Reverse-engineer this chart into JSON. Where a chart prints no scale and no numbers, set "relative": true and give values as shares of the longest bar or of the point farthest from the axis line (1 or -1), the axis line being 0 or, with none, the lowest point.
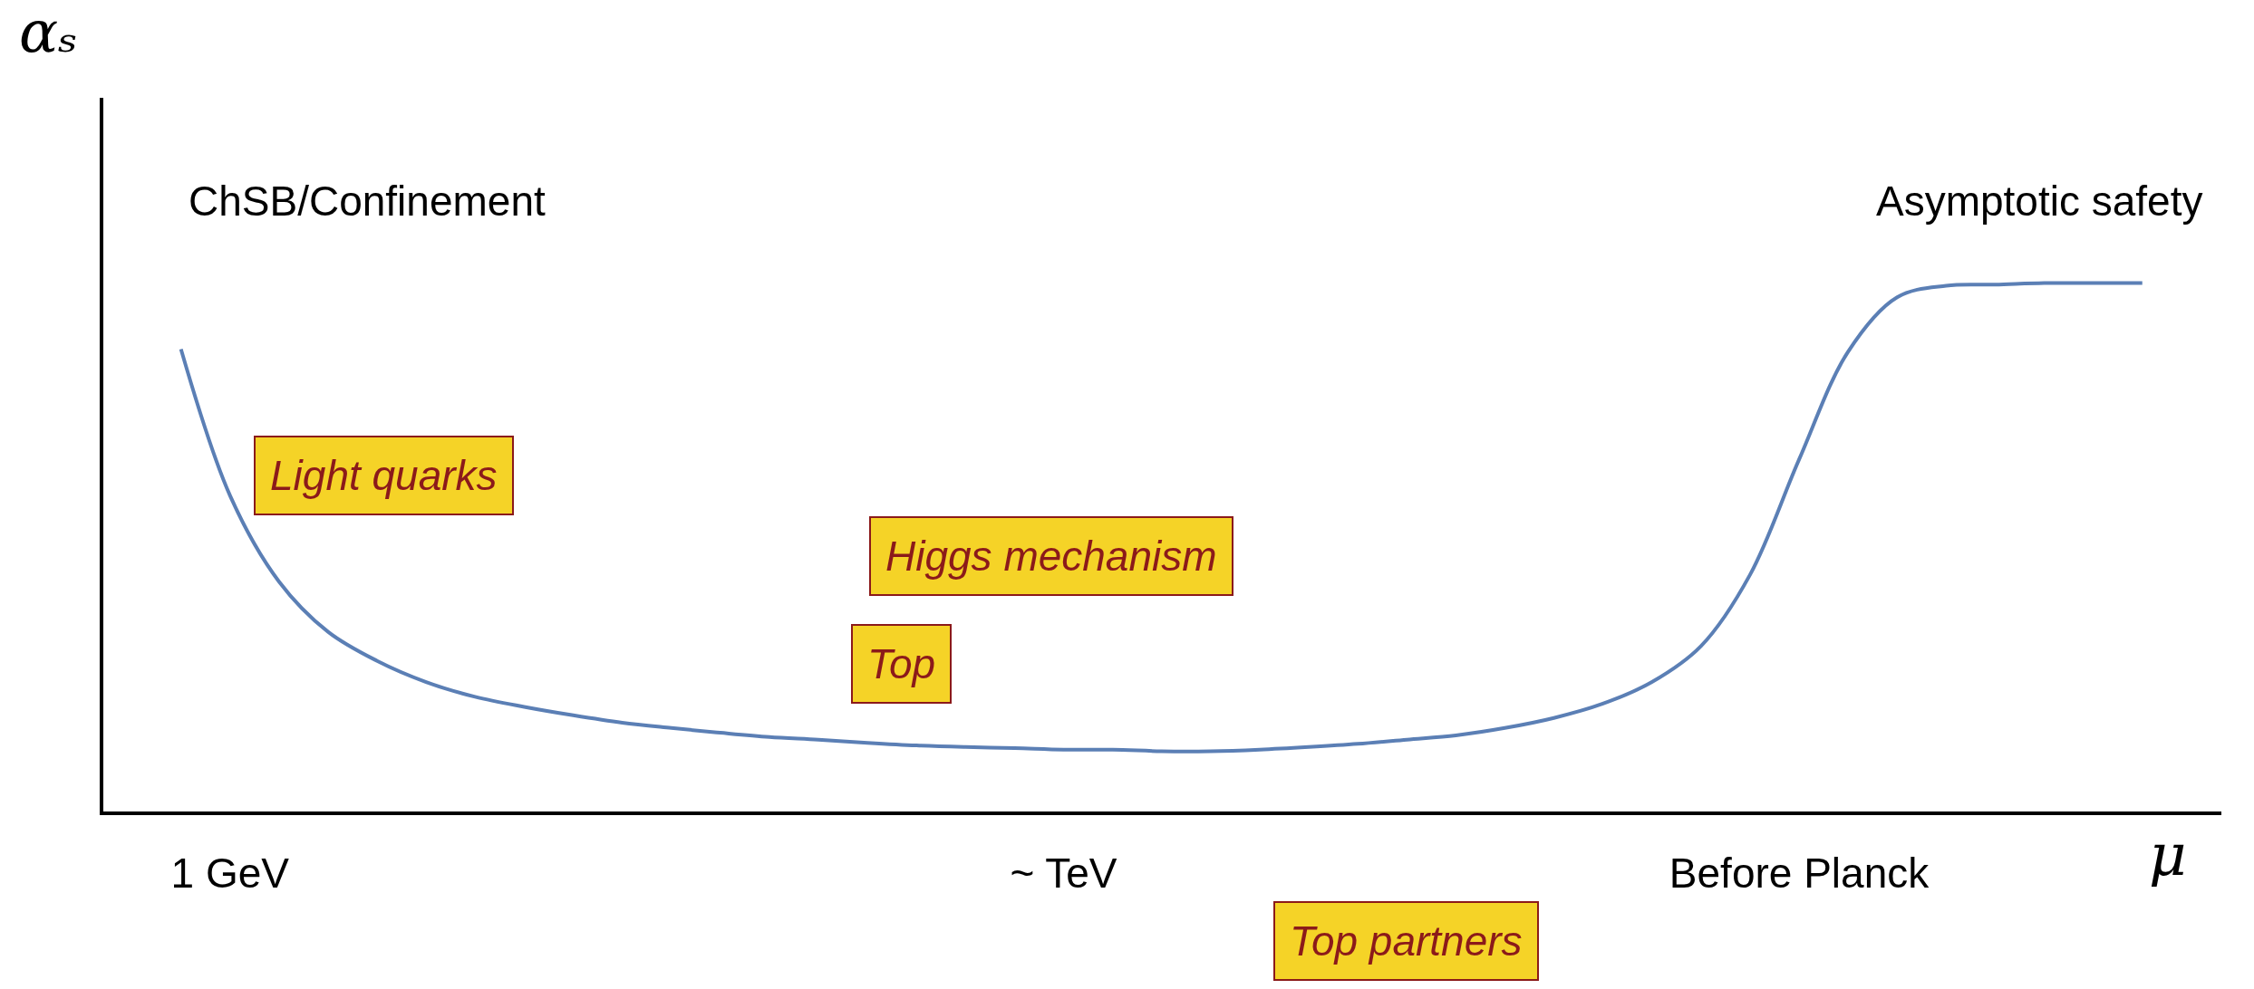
{
  "chart_data": {
    "type": "line",
    "relative": true,
    "xlabel": "μ",
    "ylabel": "αₛ",
    "categories": [
      null,
      "1 GeV",
      null,
      null,
      null,
      null,
      null,
      null,
      null,
      null,
      null,
      null,
      null,
      null,
      null,
      null,
      null,
      null,
      "~ TeV",
      null,
      null,
      null,
      null,
      null,
      null,
      null,
      null,
      null,
      null,
      null,
      null,
      null,
      null,
      "Before Planck",
      null,
      null,
      null,
      null,
      null,
      null,
      null
    ],
    "series": [
      {
        "color": "#5b7fb5",
        "values": [
          0.875,
          0.598,
          0.435,
          0.34,
          0.285,
          0.245,
          0.217,
          0.198,
          0.182,
          0.168,
          0.158,
          0.149,
          0.141,
          0.136,
          0.13,
          0.125,
          0.122,
          0.12,
          0.117,
          0.117,
          0.114,
          0.114,
          0.117,
          0.122,
          0.128,
          0.136,
          0.144,
          0.158,
          0.177,
          0.204,
          0.245,
          0.313,
          0.448,
          0.666,
          0.87,
          0.973,
          0.995,
          0.997,
          1,
          1,
          1
        ]
      }
    ],
    "annotations": [
      "ChSB/Confinement",
      "Asymptotic safety",
      "Light quarks",
      "Higgs mechanism",
      "Top",
      "Top partners"
    ],
    "marker": "none",
    "line_style": "solid"
  }
}
